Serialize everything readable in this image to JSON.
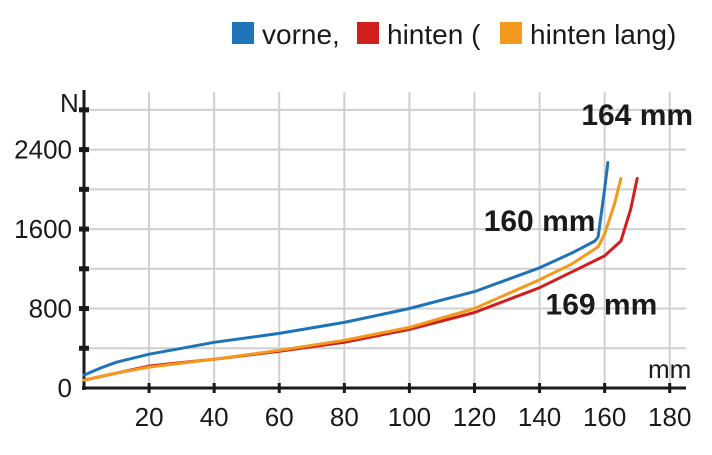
{
  "chart_data": {
    "type": "line",
    "xlabel": "mm",
    "ylabel": "N",
    "xlim": [
      0,
      185
    ],
    "ylim": [
      0,
      3000
    ],
    "x_ticks": [
      20,
      40,
      60,
      80,
      100,
      120,
      140,
      160,
      180
    ],
    "y_ticks": [
      0,
      800,
      1600,
      2400
    ],
    "grid": true,
    "legend": {
      "position": "top-right",
      "entries": [
        {
          "name": "vorne,",
          "color": "#1f73b7"
        },
        {
          "name": "hinten (",
          "color": "#d0201e"
        },
        {
          "name": "hinten lang)",
          "color": "#f39a1e"
        }
      ]
    },
    "series": [
      {
        "name": "vorne,",
        "color": "#1f73b7",
        "points": [
          [
            0,
            130
          ],
          [
            5,
            200
          ],
          [
            10,
            260
          ],
          [
            20,
            340
          ],
          [
            30,
            400
          ],
          [
            40,
            460
          ],
          [
            60,
            550
          ],
          [
            80,
            660
          ],
          [
            100,
            800
          ],
          [
            120,
            970
          ],
          [
            140,
            1210
          ],
          [
            150,
            1360
          ],
          [
            157,
            1480
          ],
          [
            158,
            1520
          ],
          [
            160,
            2000
          ],
          [
            161,
            2270
          ]
        ]
      },
      {
        "name": "hinten (",
        "color": "#d0201e",
        "points": [
          [
            0,
            80
          ],
          [
            10,
            150
          ],
          [
            20,
            220
          ],
          [
            25,
            240
          ],
          [
            40,
            290
          ],
          [
            60,
            370
          ],
          [
            80,
            460
          ],
          [
            100,
            590
          ],
          [
            120,
            760
          ],
          [
            140,
            1010
          ],
          [
            150,
            1170
          ],
          [
            160,
            1330
          ],
          [
            165,
            1480
          ],
          [
            168,
            1800
          ],
          [
            170,
            2110
          ]
        ]
      },
      {
        "name": "hinten lang)",
        "color": "#f39a1e",
        "points": [
          [
            0,
            80
          ],
          [
            10,
            150
          ],
          [
            20,
            210
          ],
          [
            40,
            290
          ],
          [
            60,
            380
          ],
          [
            80,
            480
          ],
          [
            100,
            610
          ],
          [
            120,
            800
          ],
          [
            140,
            1090
          ],
          [
            150,
            1250
          ],
          [
            158,
            1420
          ],
          [
            160,
            1550
          ],
          [
            163,
            1850
          ],
          [
            165,
            2110
          ]
        ]
      }
    ],
    "annotations": [
      {
        "text": "164 mm",
        "at": [
          170,
          2650
        ]
      },
      {
        "text": "160 mm",
        "at": [
          140,
          1580
        ]
      },
      {
        "text": "169 mm",
        "at": [
          159,
          740
        ]
      }
    ]
  }
}
